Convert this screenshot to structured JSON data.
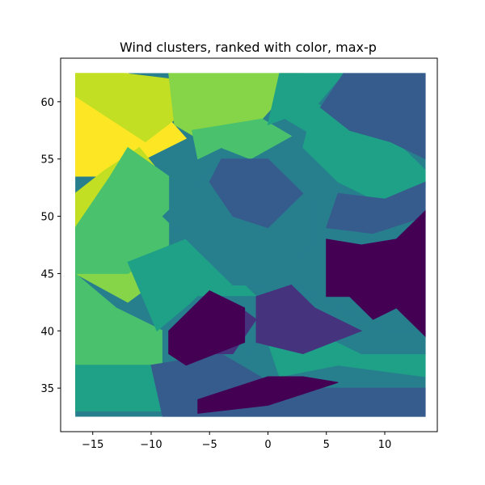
{
  "chart_data": {
    "type": "heatmap",
    "title": "Wind clusters, ranked with color, max-p",
    "xlabel": "",
    "ylabel": "",
    "xlim": [
      -17.75,
      14.5
    ],
    "ylim": [
      31.2,
      63.8
    ],
    "xticks": [
      -15,
      -10,
      -5,
      0,
      5,
      10
    ],
    "xtick_labels": [
      "−15",
      "−10",
      "−5",
      "0",
      "5",
      "10"
    ],
    "yticks": [
      35,
      40,
      45,
      50,
      55,
      60
    ],
    "ytick_labels": [
      "35",
      "40",
      "45",
      "50",
      "55",
      "60"
    ],
    "grid": false,
    "colormap": "viridis",
    "domain": {
      "x": [
        -16.5,
        13.5
      ],
      "y": [
        32.5,
        62.5
      ]
    },
    "colors": {
      "rank1": "#440154",
      "rank2": "#46337e",
      "rank3": "#365c8d",
      "rank4": "#277f8e",
      "rank5": "#1fa187",
      "rank6": "#4ac16d",
      "rank7": "#86d549",
      "rank8": "#c2df23",
      "rank9": "#fde725"
    },
    "clusters": [
      {
        "rank": 9,
        "polygon": [
          [
            -16.5,
            62.5
          ],
          [
            -12,
            62.5
          ],
          [
            -7,
            56.8
          ],
          [
            -13.5,
            53.5
          ],
          [
            -16.5,
            53.5
          ]
        ]
      },
      {
        "rank": 8,
        "polygon": [
          [
            -16.5,
            62.5
          ],
          [
            -12.5,
            62.5
          ],
          [
            -8.5,
            62
          ],
          [
            -6,
            60
          ],
          [
            -10.5,
            56.5
          ],
          [
            -16.5,
            60.5
          ]
        ]
      },
      {
        "rank": 8,
        "polygon": [
          [
            -14,
            54
          ],
          [
            -11,
            56
          ],
          [
            -9,
            53.5
          ],
          [
            -9,
            49
          ],
          [
            -16.5,
            49
          ],
          [
            -16.5,
            52
          ]
        ]
      },
      {
        "rank": 7,
        "polygon": [
          [
            -8.5,
            62.5
          ],
          [
            3,
            62.5
          ],
          [
            -0.5,
            58.5
          ],
          [
            -5.5,
            56.5
          ],
          [
            -8,
            58
          ]
        ]
      },
      {
        "rank": 7,
        "polygon": [
          [
            -16.5,
            48
          ],
          [
            -12,
            48
          ],
          [
            -10,
            44
          ],
          [
            -12,
            42.5
          ],
          [
            -16.5,
            45
          ]
        ]
      },
      {
        "rank": 6,
        "polygon": [
          [
            -12,
            56
          ],
          [
            -8.5,
            53.5
          ],
          [
            -8.5,
            47.5
          ],
          [
            -12,
            45
          ],
          [
            -16.5,
            45
          ],
          [
            -16.5,
            49
          ],
          [
            -13.5,
            53.5
          ]
        ]
      },
      {
        "rank": 6,
        "polygon": [
          [
            -16.5,
            45
          ],
          [
            -13,
            42
          ],
          [
            -9,
            40
          ],
          [
            -9,
            36.5
          ],
          [
            -16.5,
            36.5
          ]
        ]
      },
      {
        "rank": 6,
        "polygon": [
          [
            -6.5,
            57.5
          ],
          [
            -0.5,
            58.5
          ],
          [
            2,
            57
          ],
          [
            -1.5,
            55
          ],
          [
            -4,
            56
          ],
          [
            -6,
            55
          ]
        ]
      },
      {
        "rank": 5,
        "polygon": [
          [
            -16.5,
            37
          ],
          [
            -9,
            37
          ],
          [
            -9,
            33
          ],
          [
            -16.5,
            33
          ]
        ]
      },
      {
        "rank": 5,
        "polygon": [
          [
            4,
            60
          ],
          [
            7,
            58
          ],
          [
            11.5,
            56
          ],
          [
            13.5,
            54
          ],
          [
            13.5,
            52.5
          ],
          [
            10,
            51
          ],
          [
            6,
            53
          ],
          [
            3,
            56
          ]
        ]
      },
      {
        "rank": 5,
        "polygon": [
          [
            1,
            62.5
          ],
          [
            6.5,
            62.5
          ],
          [
            4,
            59.5
          ],
          [
            0,
            58
          ]
        ]
      },
      {
        "rank": 5,
        "polygon": [
          [
            -12,
            46
          ],
          [
            -7,
            48
          ],
          [
            -3,
            45
          ],
          [
            -1,
            43
          ],
          [
            -6,
            43
          ],
          [
            -9.5,
            40
          ]
        ]
      },
      {
        "rank": 5,
        "polygon": [
          [
            0,
            39
          ],
          [
            4,
            41
          ],
          [
            8,
            39
          ],
          [
            13.5,
            38
          ],
          [
            13.5,
            36
          ],
          [
            6,
            37
          ],
          [
            1,
            36
          ]
        ]
      },
      {
        "rank": 5,
        "polygon": [
          [
            2.5,
            60
          ],
          [
            6,
            59
          ],
          [
            7.5,
            57.5
          ],
          [
            4,
            57
          ],
          [
            1.5,
            58.5
          ]
        ]
      },
      {
        "rank": 4,
        "polygon": [
          [
            -9,
            50
          ],
          [
            -5,
            54
          ],
          [
            0,
            53
          ],
          [
            4,
            51
          ],
          [
            4,
            48
          ],
          [
            0,
            44
          ],
          [
            -3,
            44
          ],
          [
            -7,
            48
          ]
        ]
      },
      {
        "rank": 4,
        "polygon": [
          [
            -9,
            40
          ],
          [
            -6,
            43
          ],
          [
            -1,
            43
          ],
          [
            -1,
            38
          ],
          [
            -9,
            37
          ]
        ]
      },
      {
        "rank": 4,
        "polygon": [
          [
            2,
            44
          ],
          [
            6,
            42
          ],
          [
            10,
            40
          ],
          [
            13.5,
            40
          ],
          [
            13.5,
            38
          ],
          [
            8,
            38
          ],
          [
            4,
            40
          ],
          [
            1,
            40
          ]
        ]
      },
      {
        "rank": 3,
        "polygon": [
          [
            -4,
            55
          ],
          [
            0,
            55
          ],
          [
            3,
            52
          ],
          [
            0,
            49
          ],
          [
            -3,
            50
          ],
          [
            -5,
            53
          ]
        ]
      },
      {
        "rank": 3,
        "polygon": [
          [
            6,
            52
          ],
          [
            10,
            51.5
          ],
          [
            13.5,
            53
          ],
          [
            13.5,
            50
          ],
          [
            9,
            48.5
          ],
          [
            5,
            49
          ]
        ]
      },
      {
        "rank": 3,
        "polygon": [
          [
            -10,
            37
          ],
          [
            -4,
            38
          ],
          [
            1,
            35
          ],
          [
            7,
            35
          ],
          [
            13.5,
            35
          ],
          [
            13.5,
            32.5
          ],
          [
            -9,
            32.5
          ]
        ]
      },
      {
        "rank": 3,
        "polygon": [
          [
            6.5,
            62.5
          ],
          [
            13.5,
            62.5
          ],
          [
            13.5,
            55
          ],
          [
            10.5,
            56.5
          ],
          [
            7,
            57.5
          ],
          [
            4.5,
            59.5
          ]
        ]
      },
      {
        "rank": 2,
        "polygon": [
          [
            -1,
            43
          ],
          [
            2,
            44
          ],
          [
            4,
            42
          ],
          [
            8,
            40
          ],
          [
            3,
            38
          ],
          [
            -1,
            39
          ]
        ]
      },
      {
        "rank": 2,
        "polygon": [
          [
            -7,
            41
          ],
          [
            -3,
            42.5
          ],
          [
            -1,
            41
          ],
          [
            -3,
            38
          ],
          [
            -7,
            38
          ]
        ]
      },
      {
        "rank": 1,
        "polygon": [
          [
            -8.5,
            40
          ],
          [
            -5,
            43.5
          ],
          [
            -2,
            42
          ],
          [
            -2,
            39
          ],
          [
            -7,
            37
          ],
          [
            -8.5,
            38
          ]
        ]
      },
      {
        "rank": 1,
        "polygon": [
          [
            -6,
            34
          ],
          [
            0,
            36
          ],
          [
            3,
            36
          ],
          [
            6,
            35.5
          ],
          [
            0,
            33.5
          ],
          [
            -6,
            32.8
          ]
        ]
      },
      {
        "rank": 1,
        "polygon": [
          [
            5,
            48
          ],
          [
            8,
            47.5
          ],
          [
            11,
            48
          ],
          [
            13.5,
            50.5
          ],
          [
            13.5,
            39.5
          ],
          [
            11,
            42
          ],
          [
            9,
            41
          ],
          [
            7,
            43
          ],
          [
            5,
            43
          ]
        ]
      }
    ]
  }
}
